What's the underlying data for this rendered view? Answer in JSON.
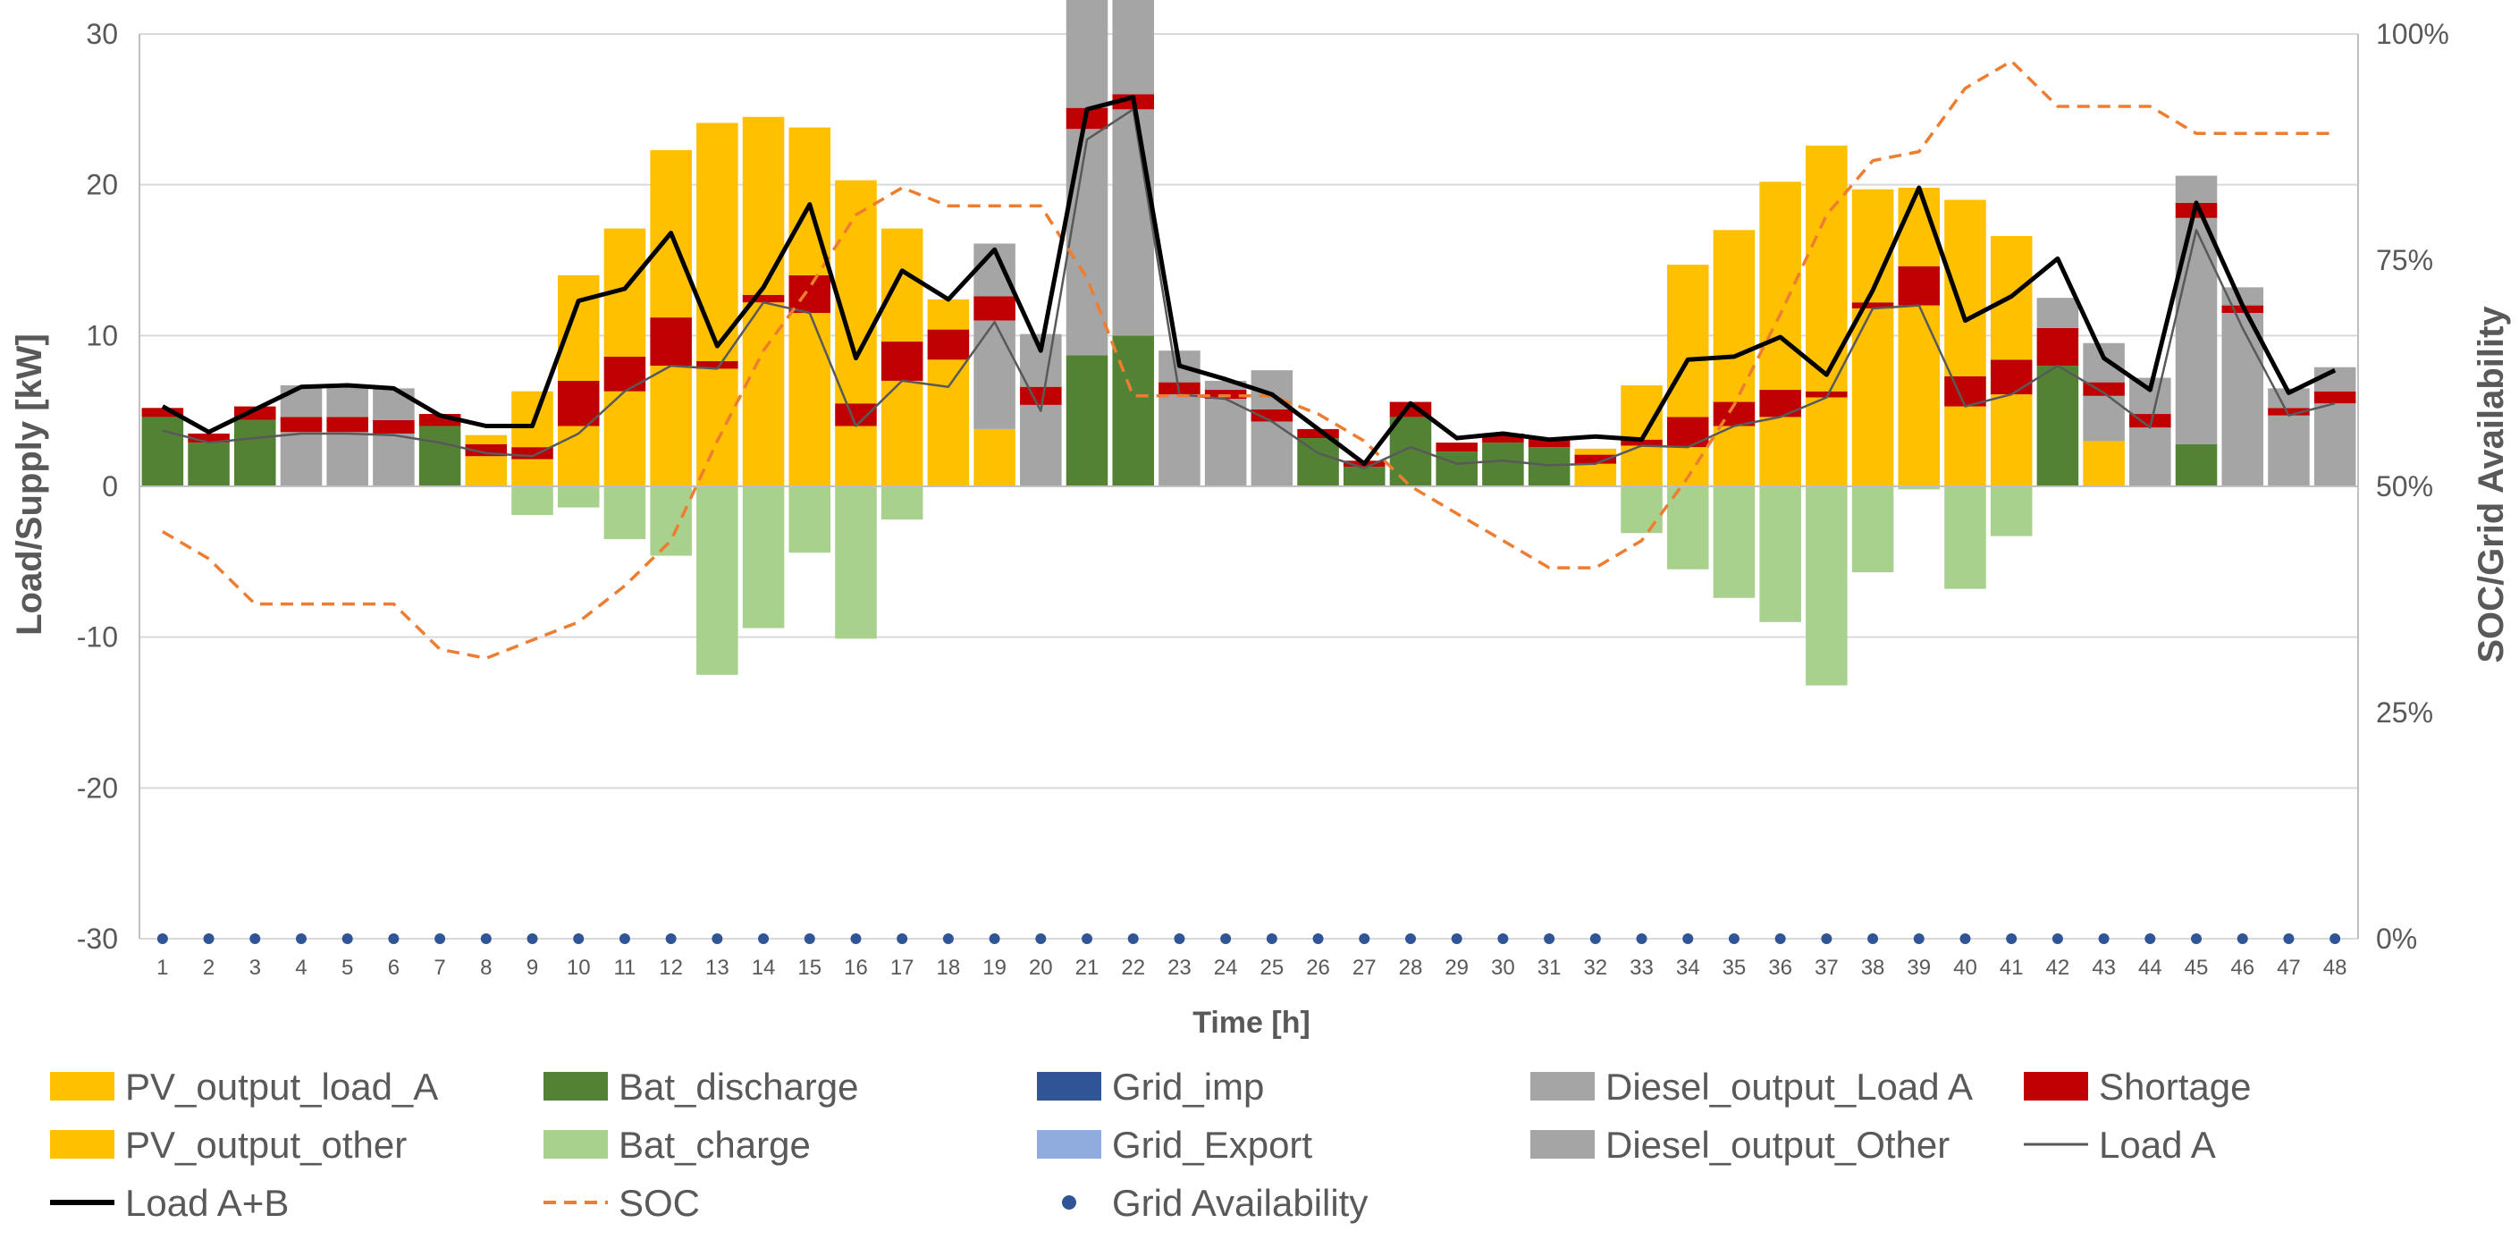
{
  "chart_data": {
    "type": "bar",
    "xlabel": "Time [h]",
    "ylabel": "Load/Supply [kW]",
    "y2label": "SOC/Grid Availability",
    "categories": [
      "1",
      "2",
      "3",
      "4",
      "5",
      "6",
      "7",
      "8",
      "9",
      "10",
      "11",
      "12",
      "13",
      "14",
      "15",
      "16",
      "17",
      "18",
      "19",
      "20",
      "21",
      "22",
      "23",
      "24",
      "25",
      "26",
      "27",
      "28",
      "29",
      "30",
      "31",
      "32",
      "33",
      "34",
      "35",
      "36",
      "37",
      "38",
      "39",
      "40",
      "41",
      "42",
      "43",
      "44",
      "45",
      "46",
      "47",
      "48"
    ],
    "ylim": [
      -30,
      30
    ],
    "yticks": [
      30,
      20,
      10,
      0,
      -10,
      -20,
      -30
    ],
    "y2lim": [
      0,
      1
    ],
    "y2ticks": [
      {
        "value": 1,
        "label": "100%"
      },
      {
        "value": 0.75,
        "label": "75%"
      },
      {
        "value": 0.5,
        "label": "50%"
      },
      {
        "value": 0.25,
        "label": "25%"
      },
      {
        "value": 0,
        "label": "0%"
      }
    ],
    "grid": true,
    "legend_position": "bottom",
    "stacked_series": [
      {
        "name": "PV_output_load_A",
        "color": "#FFC000",
        "values": [
          0,
          0,
          0,
          0,
          0,
          0,
          0,
          2.0,
          1.8,
          4.0,
          6.3,
          8.0,
          7.8,
          12.2,
          11.5,
          4.0,
          7.0,
          8.4,
          3.8,
          0,
          0,
          0,
          0,
          0,
          0,
          0,
          0,
          0,
          0,
          0,
          0,
          1.5,
          2.7,
          2.6,
          4.0,
          4.6,
          5.9,
          11.8,
          12.0,
          5.3,
          6.1,
          0,
          3.0,
          0,
          0,
          0,
          0,
          0
        ]
      },
      {
        "name": "Bat_discharge",
        "color": "#548235",
        "values": [
          4.6,
          2.9,
          4.4,
          0,
          0,
          0,
          4.0,
          0,
          0,
          0,
          0,
          0,
          0,
          0,
          0,
          0,
          0,
          0,
          0,
          0,
          8.7,
          10.0,
          0,
          0,
          0,
          3.2,
          1.3,
          4.6,
          2.3,
          2.9,
          2.6,
          0,
          0,
          0,
          0,
          0,
          0,
          0,
          0,
          0,
          0,
          8.0,
          0,
          0,
          2.8,
          0,
          0,
          0
        ]
      },
      {
        "name": "Grid_imp",
        "color": "#2F5597",
        "values": [
          0,
          0,
          0,
          0,
          0,
          0,
          0,
          0,
          0,
          0,
          0,
          0,
          0,
          0,
          0,
          0,
          0,
          0,
          0,
          0,
          0,
          0,
          0,
          0,
          0,
          0,
          0,
          0,
          0,
          0,
          0,
          0,
          0,
          0,
          0,
          0,
          0,
          0,
          0,
          0,
          0,
          0,
          0,
          0,
          0,
          0,
          0,
          0
        ]
      },
      {
        "name": "Diesel_output_Load A",
        "color": "#A5A5A5",
        "values": [
          0,
          0,
          0,
          3.6,
          3.6,
          3.5,
          0,
          0,
          0,
          0,
          0,
          0,
          0,
          0,
          0,
          0,
          0,
          0,
          7.2,
          5.4,
          15.0,
          15.0,
          6.1,
          5.8,
          4.3,
          0,
          0,
          0,
          0,
          0,
          0,
          0,
          0,
          0,
          0,
          0,
          0,
          0,
          0,
          0,
          0,
          0,
          3.0,
          3.9,
          15.0,
          11.5,
          4.7,
          5.5
        ]
      },
      {
        "name": "Shortage",
        "color": "#C00000",
        "values": [
          0.6,
          0.6,
          0.9,
          1.0,
          1.0,
          0.9,
          0.8,
          0.8,
          0.8,
          3.0,
          2.3,
          3.2,
          0.5,
          0.5,
          2.5,
          1.5,
          2.6,
          2.0,
          1.6,
          1.2,
          1.4,
          1.0,
          0.8,
          0.6,
          0.8,
          0.6,
          0.4,
          1.0,
          0.6,
          0.6,
          0.6,
          0.6,
          0.4,
          2.0,
          1.6,
          1.8,
          0.4,
          0.4,
          2.6,
          2.0,
          2.3,
          2.5,
          0.9,
          0.9,
          1.0,
          0.5,
          0.5,
          0.8
        ]
      },
      {
        "name": "PV_output_other",
        "color": "#FFC000",
        "values": [
          0,
          0,
          0,
          0,
          0,
          0,
          0,
          0.6,
          3.7,
          7.0,
          8.5,
          11.1,
          15.8,
          11.8,
          9.8,
          14.8,
          7.5,
          2.0,
          0,
          0,
          0,
          0,
          0,
          0,
          0,
          0,
          0,
          0,
          0,
          0,
          0,
          0.4,
          3.6,
          10.1,
          11.4,
          13.8,
          16.3,
          7.5,
          5.2,
          11.7,
          8.2,
          0,
          0,
          0,
          0,
          0,
          0,
          0
        ]
      },
      {
        "name": "Bat_charge",
        "color": "#A9D18E",
        "values": [
          0,
          0,
          0,
          0,
          0,
          0,
          0,
          0,
          -1.9,
          -1.4,
          -3.5,
          -4.6,
          -12.5,
          -9.4,
          -4.4,
          -10.1,
          -2.2,
          0,
          0,
          0,
          0,
          0,
          0,
          0,
          0,
          0,
          0,
          0,
          0,
          0,
          0,
          0,
          -3.1,
          -5.5,
          -7.4,
          -9.0,
          -13.2,
          -5.7,
          -0.2,
          -6.8,
          -3.3,
          0,
          0,
          0,
          0,
          0,
          0,
          0
        ]
      },
      {
        "name": "Grid_Export",
        "color": "#8FAADC",
        "values": [
          0,
          0,
          0,
          0,
          0,
          0,
          0,
          0,
          0,
          0,
          0,
          0,
          0,
          0,
          0,
          0,
          0,
          0,
          0,
          0,
          0,
          0,
          0,
          0,
          0,
          0,
          0,
          0,
          0,
          0,
          0,
          0,
          0,
          0,
          0,
          0,
          0,
          0,
          0,
          0,
          0,
          0,
          0,
          0,
          0,
          0,
          0,
          0
        ]
      },
      {
        "name": "Diesel_output_Other",
        "color": "#A5A5A5",
        "values": [
          0,
          0,
          0,
          2.1,
          2.1,
          2.1,
          0,
          0,
          0,
          0,
          0,
          0,
          0,
          0,
          0,
          0,
          0,
          0,
          3.5,
          3.5,
          8.8,
          8.7,
          2.1,
          0.6,
          2.6,
          0,
          0,
          0,
          0,
          0,
          0,
          0,
          0,
          0,
          0,
          0,
          0,
          0,
          0,
          0,
          0,
          2.0,
          2.6,
          2.4,
          1.8,
          1.2,
          1.3,
          1.6
        ]
      }
    ],
    "line_series": [
      {
        "name": "Load A",
        "color": "#595959",
        "width": 2.5,
        "dash": false,
        "axis": "primary",
        "values": [
          3.7,
          2.9,
          3.2,
          3.5,
          3.5,
          3.4,
          2.9,
          2.2,
          2.0,
          3.5,
          6.3,
          8.0,
          7.8,
          12.2,
          11.5,
          4.0,
          7.0,
          6.6,
          10.9,
          5.0,
          23.0,
          25.0,
          6.1,
          5.8,
          4.3,
          2.2,
          1.2,
          2.6,
          1.5,
          1.7,
          1.4,
          1.5,
          2.7,
          2.6,
          4.0,
          4.6,
          5.9,
          11.8,
          12.0,
          5.3,
          6.1,
          8.0,
          6.2,
          3.9,
          17.0,
          10.5,
          4.7,
          5.5
        ]
      },
      {
        "name": "Load A+B",
        "color": "#000000",
        "width": 5,
        "dash": false,
        "axis": "primary",
        "values": [
          5.3,
          3.6,
          5.1,
          6.6,
          6.7,
          6.5,
          4.7,
          4.0,
          4.0,
          12.3,
          13.1,
          16.8,
          9.3,
          13.2,
          18.7,
          8.5,
          14.3,
          12.4,
          15.7,
          9.0,
          25.0,
          25.8,
          8.0,
          7.1,
          6.1,
          3.8,
          1.5,
          5.5,
          3.2,
          3.5,
          3.1,
          3.3,
          3.1,
          8.4,
          8.6,
          9.9,
          7.4,
          13.0,
          19.8,
          11.0,
          12.6,
          15.1,
          8.5,
          6.4,
          18.8,
          12.0,
          6.2,
          7.7
        ]
      },
      {
        "name": "SOC",
        "color": "#ED7D31",
        "width": 3.5,
        "dash": true,
        "axis": "secondary",
        "values": [
          0.45,
          0.42,
          0.37,
          0.37,
          0.37,
          0.37,
          0.32,
          0.31,
          0.33,
          0.35,
          0.39,
          0.44,
          0.55,
          0.65,
          0.72,
          0.8,
          0.83,
          0.81,
          0.81,
          0.81,
          0.73,
          0.6,
          0.6,
          0.6,
          0.6,
          0.58,
          0.55,
          0.5,
          0.47,
          0.44,
          0.41,
          0.41,
          0.44,
          0.51,
          0.59,
          0.69,
          0.8,
          0.86,
          0.87,
          0.94,
          0.97,
          0.92,
          0.92,
          0.92,
          0.89,
          0.89,
          0.89,
          0.89
        ]
      },
      {
        "name": "Grid Availability",
        "color": "#2F5597",
        "type": "markers",
        "axis": "secondary",
        "values": [
          0,
          0,
          0,
          0,
          0,
          0,
          0,
          0,
          0,
          0,
          0,
          0,
          0,
          0,
          0,
          0,
          0,
          0,
          0,
          0,
          0,
          0,
          0,
          0,
          0,
          0,
          0,
          0,
          0,
          0,
          0,
          0,
          0,
          0,
          0,
          0,
          0,
          0,
          0,
          0,
          0,
          0,
          0,
          0,
          0,
          0,
          0,
          0
        ]
      }
    ],
    "legend": [
      {
        "label": "PV_output_load_A",
        "kind": "box",
        "color": "#FFC000"
      },
      {
        "label": "Bat_discharge",
        "kind": "box",
        "color": "#548235"
      },
      {
        "label": "Grid_imp",
        "kind": "box",
        "color": "#2F5597"
      },
      {
        "label": "Diesel_output_Load A",
        "kind": "box",
        "color": "#A5A5A5"
      },
      {
        "label": "Shortage",
        "kind": "box",
        "color": "#C00000"
      },
      {
        "label": "PV_output_other",
        "kind": "box",
        "color": "#FFC000"
      },
      {
        "label": "Bat_charge",
        "kind": "box",
        "color": "#A9D18E"
      },
      {
        "label": "Grid_Export",
        "kind": "box",
        "color": "#8FAADC"
      },
      {
        "label": "Diesel_output_Other",
        "kind": "box",
        "color": "#A5A5A5"
      },
      {
        "label": "Load A",
        "kind": "line",
        "color": "#595959"
      },
      {
        "label": "Load A+B",
        "kind": "thickline",
        "color": "#000000"
      },
      {
        "label": "SOC",
        "kind": "dash",
        "color": "#ED7D31"
      },
      {
        "label": "Grid Availability",
        "kind": "marker",
        "color": "#2F5597"
      }
    ]
  }
}
